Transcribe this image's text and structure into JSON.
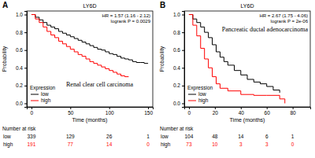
{
  "chart_data": [
    {
      "type": "line",
      "panel_label": "A",
      "title": "LY6D",
      "annotations": [
        "HR = 1.57 (1.16 - 2.12)",
        "logrank P = 0.0029",
        "Renal clear cell carcinoma"
      ],
      "x_label": "Time (months)",
      "y_label": "Probability",
      "xlim": [
        -6,
        156
      ],
      "xticks": [
        0,
        50,
        100,
        150
      ],
      "ylim": [
        -0.04,
        1.04
      ],
      "yticks": [
        {
          "value": 0,
          "label": "0.0"
        },
        {
          "value": 0.2,
          "label": "0.2"
        },
        {
          "value": 0.4,
          "label": "0.4"
        },
        {
          "value": 0.6,
          "label": "0.6"
        },
        {
          "value": 0.8,
          "label": "0.8"
        },
        {
          "value": 1,
          "label": "1.0"
        }
      ],
      "legend": "bottomleft",
      "legend_title": "Expression",
      "line_style": "step",
      "series": [
        {
          "name": "low",
          "color": "#000000",
          "x": [
            0,
            5,
            10,
            15,
            20,
            25,
            30,
            35,
            40,
            45,
            50,
            55,
            60,
            65,
            70,
            75,
            80,
            85,
            90,
            95,
            100,
            105,
            110,
            115,
            120,
            125,
            130,
            135,
            140,
            145,
            150
          ],
          "values": [
            1,
            0.97,
            0.94,
            0.91,
            0.88,
            0.86,
            0.84,
            0.81,
            0.79,
            0.77,
            0.75,
            0.73,
            0.71,
            0.69,
            0.67,
            0.65,
            0.63,
            0.61,
            0.6,
            0.58,
            0.56,
            0.55,
            0.53,
            0.51,
            0.5,
            0.49,
            0.47,
            0.46,
            0.46,
            0.45,
            0.45
          ]
        },
        {
          "name": "high",
          "color": "#ff0000",
          "x": [
            0,
            5,
            10,
            15,
            20,
            25,
            30,
            35,
            40,
            45,
            50,
            55,
            60,
            65,
            70,
            75,
            80,
            85,
            90,
            95,
            100,
            105,
            110,
            115,
            120,
            125
          ],
          "values": [
            1,
            0.95,
            0.91,
            0.86,
            0.81,
            0.77,
            0.74,
            0.7,
            0.67,
            0.64,
            0.61,
            0.58,
            0.55,
            0.53,
            0.5,
            0.47,
            0.45,
            0.43,
            0.41,
            0.39,
            0.37,
            0.35,
            0.33,
            0.31,
            0.3,
            0.3
          ]
        }
      ],
      "risk_table": {
        "title": "Number at risk",
        "rows": [
          {
            "name": "low",
            "values": [
              339,
              129,
              26,
              1
            ]
          },
          {
            "name": "high",
            "values": [
              191,
              77,
              14,
              0
            ]
          }
        ]
      }
    },
    {
      "type": "line",
      "panel_label": "B",
      "title": "LY6D",
      "annotations": [
        "HR = 2.67 (1.75 - 4.06)",
        "logrank P = 2e-06",
        "Pancreatic ductal adenocarcinoma"
      ],
      "x_label": "Time (months)",
      "y_label": "Probability",
      "xlim": [
        -3.6,
        93.6
      ],
      "xticks": [
        0,
        20,
        40,
        60,
        80
      ],
      "ylim": [
        -0.04,
        1.04
      ],
      "yticks": [
        {
          "value": 0,
          "label": "0.0"
        },
        {
          "value": 0.2,
          "label": "0.2"
        },
        {
          "value": 0.4,
          "label": "0.4"
        },
        {
          "value": 0.6,
          "label": "0.6"
        },
        {
          "value": 0.8,
          "label": "0.8"
        },
        {
          "value": 1,
          "label": "1.0"
        }
      ],
      "legend": "bottomleft",
      "legend_title": "Expression",
      "line_style": "step",
      "series": [
        {
          "name": "low",
          "color": "#000000",
          "x": [
            0,
            3,
            6,
            9,
            12,
            15,
            18,
            21,
            24,
            27,
            30,
            35,
            40,
            45,
            50,
            55,
            60,
            65,
            70
          ],
          "values": [
            1,
            0.95,
            0.91,
            0.86,
            0.8,
            0.74,
            0.66,
            0.58,
            0.52,
            0.47,
            0.43,
            0.37,
            0.32,
            0.27,
            0.24,
            0.22,
            0.19,
            0.15,
            0.12
          ]
        },
        {
          "name": "high",
          "color": "#ff0000",
          "x": [
            0,
            3,
            6,
            9,
            12,
            15,
            18,
            21,
            24,
            30,
            40,
            50,
            60,
            70,
            74
          ],
          "values": [
            1,
            0.88,
            0.76,
            0.62,
            0.5,
            0.4,
            0.3,
            0.22,
            0.17,
            0.14,
            0.1,
            0.09,
            0.09,
            0.05,
            0
          ]
        }
      ],
      "risk_table": {
        "title": "Number at risk",
        "rows": [
          {
            "name": "low",
            "values": [
              104,
              48,
              14,
              6,
              1
            ]
          },
          {
            "name": "high",
            "values": [
              73,
              10,
              3,
              3,
              0
            ]
          }
        ]
      }
    }
  ]
}
